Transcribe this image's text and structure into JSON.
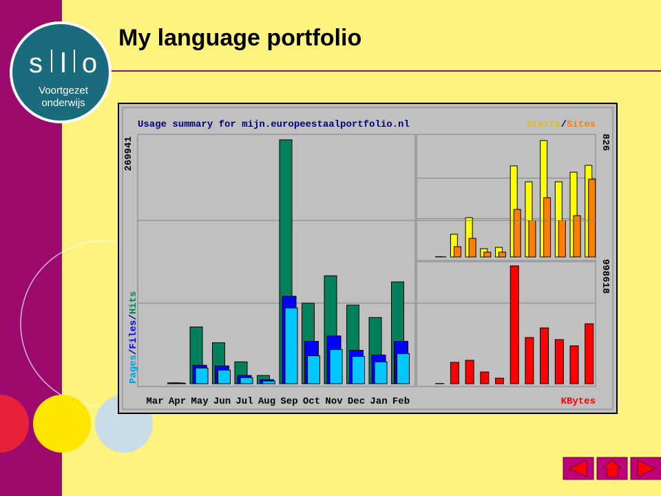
{
  "title": "My language portfolio",
  "logo": {
    "letters": [
      "s",
      "l",
      "o"
    ],
    "subtitle": [
      "Voortgezet",
      "onderwijs"
    ]
  },
  "legend_separator": "/",
  "chart_data": [
    {
      "type": "bar",
      "title": "Usage summary for mijn.europeestaalportfolio.nl",
      "categories": [
        "Mar",
        "Apr",
        "May",
        "Jun",
        "Jul",
        "Aug",
        "Sep",
        "Oct",
        "Nov",
        "Dec",
        "Jan",
        "Feb"
      ],
      "series": [
        {
          "name": "Hits",
          "color": "#00805c",
          "values": [
            0,
            1000,
            62800,
            45400,
            24200,
            9100,
            269941,
            89200,
            119500,
            87000,
            73300,
            112700
          ]
        },
        {
          "name": "Files",
          "color": "#0000ff",
          "values": [
            0,
            800,
            20400,
            19700,
            9100,
            4500,
            96800,
            46900,
            52900,
            37000,
            31800,
            46900
          ]
        },
        {
          "name": "Pages",
          "color": "#00c8ff",
          "values": [
            0,
            500,
            17400,
            15100,
            6800,
            3000,
            83900,
            31000,
            37800,
            30200,
            24200,
            33300
          ]
        }
      ],
      "ylim": [
        0,
        269941
      ],
      "yticks": [
        269941
      ]
    },
    {
      "type": "bar",
      "series": [
        {
          "name": "Visits",
          "color": "#ffff00",
          "values": [
            0,
            2,
            161,
            279,
            59,
            68,
            646,
            533,
            826,
            533,
            601,
            650
          ]
        },
        {
          "name": "Sites",
          "color": "#ff8000",
          "values": [
            0,
            1,
            73,
            132,
            34,
            34,
            337,
            259,
            420,
            259,
            293,
            552
          ]
        }
      ],
      "ylim": [
        0,
        826
      ],
      "yticks": [
        826
      ]
    },
    {
      "type": "bar",
      "series": [
        {
          "name": "KBytes",
          "color": "#ff0000",
          "values": [
            0,
            2000,
            181000,
            198600,
            99300,
            46700,
            998618,
            391300,
            473000,
            373800,
            321200,
            508100
          ]
        }
      ],
      "ylim": [
        0,
        998618
      ],
      "yticks": [
        998618
      ]
    }
  ]
}
